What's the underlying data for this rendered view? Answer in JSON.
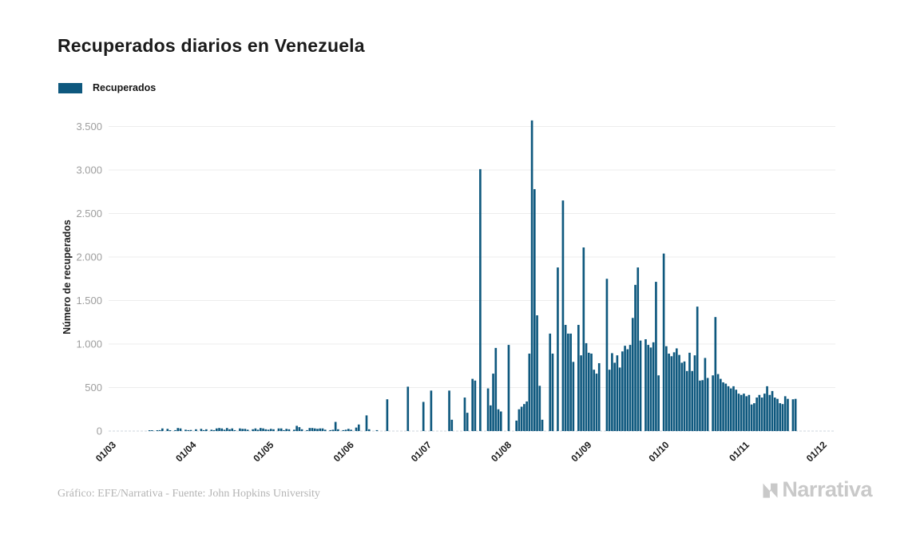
{
  "title": "Recuperados diarios en Venezuela",
  "legend": {
    "label": "Recuperados",
    "color": "#0e587e"
  },
  "footer": {
    "credit": "Gráfico: EFE/Narrativa - Fuente: John Hopkins University",
    "logo_text": "Narrativa"
  },
  "chart_data": {
    "type": "bar",
    "title": "Recuperados diarios en Venezuela",
    "series_name": "Recuperados",
    "xlabel": "",
    "ylabel": "Número de recuperados",
    "bar_color": "#0e587e",
    "grid": true,
    "legend_position": "top-left",
    "ylim": [
      0,
      3500
    ],
    "ytick_values": [
      0,
      500,
      1000,
      1500,
      2000,
      2500,
      3000,
      3500
    ],
    "yticks": [
      "0",
      "500",
      "1.000",
      "1.500",
      "2.000",
      "2.500",
      "3.000",
      "3.500"
    ],
    "xticks": [
      "01/03",
      "01/04",
      "01/05",
      "01/06",
      "01/07",
      "01/08",
      "01/09",
      "01/10",
      "01/11",
      "01/12"
    ],
    "xtick_day_offsets": [
      0,
      31,
      61,
      92,
      122,
      153,
      184,
      214,
      245,
      275
    ],
    "x": [
      "01/03",
      "02/03",
      "03/03",
      "04/03",
      "05/03",
      "06/03",
      "07/03",
      "08/03",
      "09/03",
      "10/03",
      "11/03",
      "12/03",
      "13/03",
      "14/03",
      "15/03",
      "16/03",
      "17/03",
      "18/03",
      "19/03",
      "20/03",
      "21/03",
      "22/03",
      "23/03",
      "24/03",
      "25/03",
      "26/03",
      "27/03",
      "28/03",
      "29/03",
      "30/03",
      "31/03",
      "01/04",
      "02/04",
      "03/04",
      "04/04",
      "05/04",
      "06/04",
      "07/04",
      "08/04",
      "09/04",
      "10/04",
      "11/04",
      "12/04",
      "13/04",
      "14/04",
      "15/04",
      "16/04",
      "17/04",
      "18/04",
      "19/04",
      "20/04",
      "21/04",
      "22/04",
      "23/04",
      "24/04",
      "25/04",
      "26/04",
      "27/04",
      "28/04",
      "29/04",
      "30/04",
      "01/05",
      "02/05",
      "03/05",
      "04/05",
      "05/05",
      "06/05",
      "07/05",
      "08/05",
      "09/05",
      "10/05",
      "11/05",
      "12/05",
      "13/05",
      "14/05",
      "15/05",
      "16/05",
      "17/05",
      "18/05",
      "19/05",
      "20/05",
      "21/05",
      "22/05",
      "23/05",
      "24/05",
      "25/05",
      "26/05",
      "27/05",
      "28/05",
      "29/05",
      "30/05",
      "31/05",
      "01/06",
      "02/06",
      "03/06",
      "04/06",
      "05/06",
      "06/06",
      "07/06",
      "08/06",
      "09/06",
      "10/06",
      "11/06",
      "12/06",
      "13/06",
      "14/06",
      "15/06",
      "16/06",
      "17/06",
      "18/06",
      "19/06",
      "20/06",
      "21/06",
      "22/06",
      "23/06",
      "24/06",
      "25/06",
      "26/06",
      "27/06",
      "28/06",
      "29/06",
      "30/06",
      "01/07",
      "02/07",
      "03/07",
      "04/07",
      "05/07",
      "06/07",
      "07/07",
      "08/07",
      "09/07",
      "10/07",
      "11/07",
      "12/07",
      "13/07",
      "14/07",
      "15/07",
      "16/07",
      "17/07",
      "18/07",
      "19/07",
      "20/07",
      "21/07",
      "22/07",
      "23/07",
      "24/07",
      "25/07",
      "26/07",
      "27/07",
      "28/07",
      "29/07",
      "30/07",
      "31/07",
      "01/08",
      "02/08",
      "03/08",
      "04/08",
      "05/08",
      "06/08",
      "07/08",
      "08/08",
      "09/08",
      "10/08",
      "11/08",
      "12/08",
      "13/08",
      "14/08",
      "15/08",
      "16/08",
      "17/08",
      "18/08",
      "19/08",
      "20/08",
      "21/08",
      "22/08",
      "23/08",
      "24/08",
      "25/08",
      "26/08",
      "27/08",
      "28/08",
      "29/08",
      "30/08",
      "31/08",
      "01/09",
      "02/09",
      "03/09",
      "04/09",
      "05/09",
      "06/09",
      "07/09",
      "08/09",
      "09/09",
      "10/09",
      "11/09",
      "12/09",
      "13/09",
      "14/09",
      "15/09",
      "16/09",
      "17/09",
      "18/09",
      "19/09",
      "20/09",
      "21/09",
      "22/09",
      "23/09",
      "24/09",
      "25/09",
      "26/09",
      "27/09",
      "28/09",
      "29/09",
      "30/09",
      "01/10",
      "02/10",
      "03/10",
      "04/10",
      "05/10",
      "06/10",
      "07/10",
      "08/10",
      "09/10",
      "10/10",
      "11/10",
      "12/10",
      "13/10",
      "14/10",
      "15/10",
      "16/10",
      "17/10",
      "18/10",
      "19/10",
      "20/10",
      "21/10",
      "22/10",
      "23/10",
      "24/10",
      "25/10",
      "26/10",
      "27/10",
      "28/10",
      "29/10",
      "30/10",
      "31/10",
      "01/11",
      "02/11",
      "03/11",
      "04/11",
      "05/11",
      "06/11",
      "07/11",
      "08/11",
      "09/11",
      "10/11",
      "11/11",
      "12/11",
      "13/11",
      "14/11",
      "15/11",
      "16/11",
      "17/11",
      "18/11",
      "19/11",
      "20/11",
      "21/11"
    ],
    "values": [
      0,
      0,
      0,
      0,
      0,
      0,
      0,
      0,
      0,
      0,
      0,
      0,
      0,
      0,
      0,
      8,
      5,
      0,
      8,
      10,
      30,
      0,
      25,
      8,
      0,
      10,
      35,
      30,
      0,
      15,
      10,
      12,
      0,
      20,
      0,
      25,
      10,
      20,
      0,
      15,
      10,
      30,
      35,
      30,
      15,
      35,
      20,
      30,
      10,
      0,
      30,
      25,
      25,
      15,
      0,
      20,
      30,
      15,
      35,
      30,
      20,
      15,
      25,
      20,
      0,
      30,
      30,
      10,
      25,
      20,
      0,
      15,
      60,
      45,
      20,
      0,
      10,
      35,
      35,
      30,
      25,
      30,
      30,
      15,
      0,
      10,
      15,
      105,
      20,
      0,
      10,
      15,
      25,
      15,
      0,
      40,
      75,
      0,
      0,
      180,
      20,
      0,
      0,
      10,
      0,
      0,
      0,
      365,
      0,
      0,
      0,
      0,
      0,
      0,
      0,
      510,
      0,
      0,
      0,
      0,
      0,
      335,
      0,
      0,
      465,
      0,
      0,
      0,
      0,
      0,
      0,
      465,
      130,
      0,
      0,
      0,
      0,
      385,
      210,
      0,
      600,
      580,
      0,
      3010,
      0,
      0,
      490,
      295,
      660,
      955,
      250,
      225,
      0,
      0,
      990,
      0,
      0,
      120,
      250,
      280,
      310,
      340,
      890,
      3570,
      2780,
      1330,
      520,
      130,
      0,
      0,
      1120,
      890,
      0,
      1880,
      0,
      2650,
      1220,
      1120,
      1120,
      795,
      0,
      1220,
      870,
      2110,
      1010,
      900,
      890,
      705,
      660,
      780,
      0,
      0,
      1750,
      705,
      895,
      785,
      870,
      730,
      915,
      980,
      940,
      990,
      1300,
      1680,
      1880,
      1040,
      0,
      1055,
      990,
      960,
      1020,
      1715,
      640,
      0,
      2040,
      975,
      890,
      860,
      905,
      950,
      875,
      785,
      800,
      690,
      900,
      690,
      870,
      1430,
      580,
      585,
      840,
      610,
      0,
      640,
      1310,
      655,
      600,
      560,
      545,
      515,
      490,
      515,
      475,
      430,
      415,
      430,
      400,
      415,
      305,
      320,
      385,
      415,
      385,
      430,
      515,
      415,
      460,
      385,
      370,
      320,
      310,
      400,
      370,
      0,
      365,
      370
    ]
  }
}
